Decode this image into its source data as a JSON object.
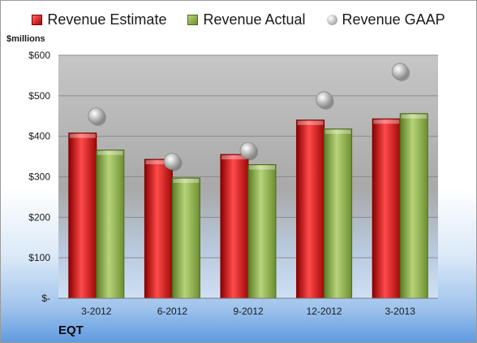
{
  "chart_data": {
    "type": "bar",
    "categories": [
      "3-2012",
      "6-2012",
      "9-2012",
      "12-2012",
      "3-2013"
    ],
    "series": [
      {
        "name": "Revenue Estimate",
        "kind": "bar",
        "color": "#c8141a",
        "values": [
          408,
          343,
          355,
          440,
          443
        ]
      },
      {
        "name": "Revenue Actual",
        "kind": "bar",
        "color": "#8aab45",
        "values": [
          366,
          297,
          330,
          418,
          456
        ]
      },
      {
        "name": "Revenue GAAP",
        "kind": "scatter",
        "color": "#b4b4b4",
        "values": [
          450,
          338,
          365,
          490,
          560
        ]
      }
    ],
    "ylabel": "$millions",
    "ylim": [
      0,
      600
    ],
    "yticks": [
      0,
      100,
      200,
      300,
      400,
      500,
      600
    ],
    "ytick_labels": [
      "$-",
      "$100",
      "$200",
      "$300",
      "$400",
      "$500",
      "$600"
    ],
    "grid": true,
    "legend_position": "top"
  },
  "legend": {
    "estimate": "Revenue Estimate",
    "actual": "Revenue Actual",
    "gaap": "Revenue GAAP"
  },
  "unit_label": "$millions",
  "company": "EQT"
}
